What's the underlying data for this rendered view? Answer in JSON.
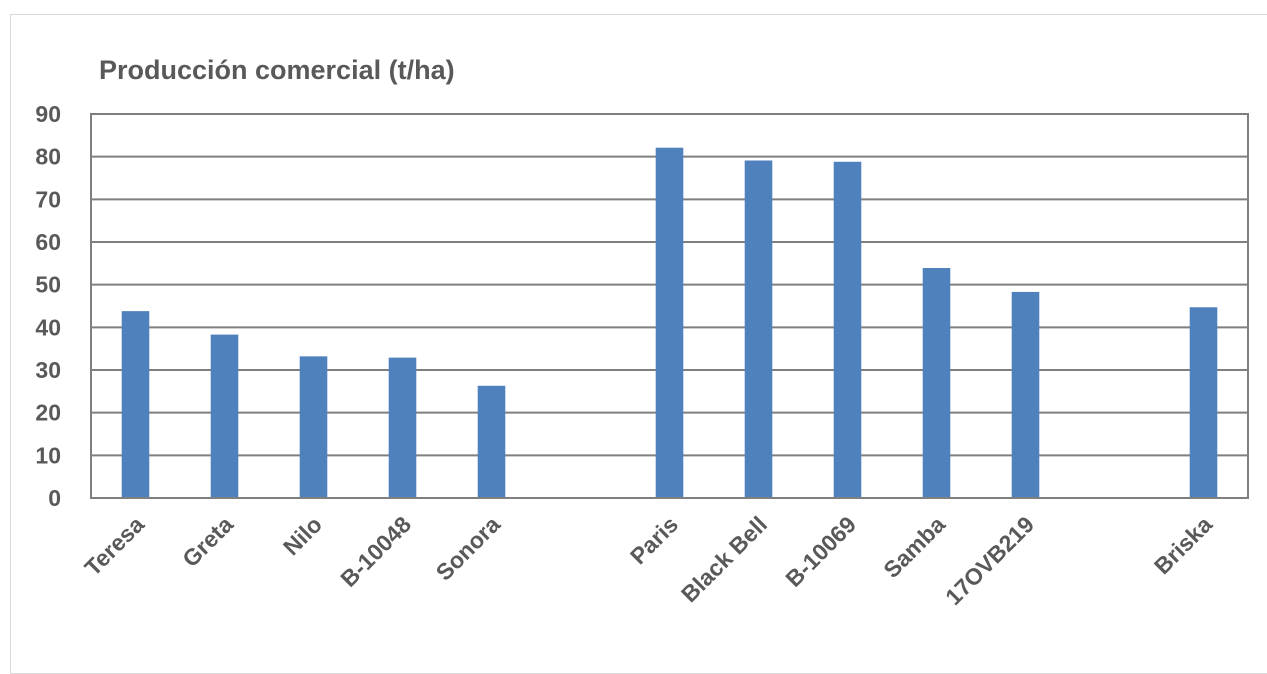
{
  "chart_data": {
    "type": "bar",
    "title": "Producción comercial (t/ha)",
    "categories": [
      "Teresa",
      "Greta",
      "Nilo",
      "B-10048",
      "Sonora",
      "",
      "Paris",
      "Black Bell",
      "B-10069",
      "Samba",
      "17OVB219",
      "",
      "Briska"
    ],
    "values": [
      43.8,
      38.3,
      33.2,
      32.9,
      26.3,
      null,
      82.1,
      79.1,
      78.8,
      53.9,
      48.3,
      null,
      44.7
    ],
    "y_ticks": [
      "0",
      "10",
      "20",
      "30",
      "40",
      "50",
      "60",
      "70",
      "80",
      "90"
    ],
    "ylim": [
      0,
      90
    ],
    "xlabel": "",
    "ylabel": "",
    "grid": true,
    "bar_color": "#4f81bd",
    "grid_color": "#7f7f7f",
    "text_color": "#595959"
  }
}
